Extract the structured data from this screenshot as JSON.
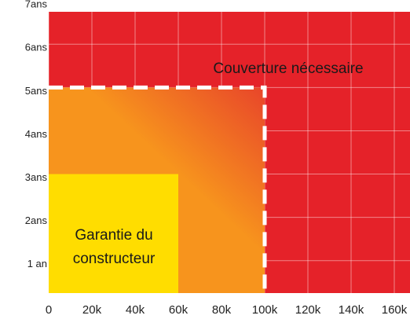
{
  "chart_data": {
    "type": "region",
    "xlim": [
      0,
      160000
    ],
    "ylim": [
      0.25,
      6.75
    ],
    "xticks": [
      {
        "value": 0,
        "label": "0"
      },
      {
        "value": 20000,
        "label": "20k"
      },
      {
        "value": 40000,
        "label": "40k"
      },
      {
        "value": 60000,
        "label": "60k"
      },
      {
        "value": 80000,
        "label": "80k"
      },
      {
        "value": 100000,
        "label": "100k"
      },
      {
        "value": 120000,
        "label": "120k"
      },
      {
        "value": 140000,
        "label": "140k"
      },
      {
        "value": 160000,
        "label": "160k"
      }
    ],
    "yticks": [
      {
        "value": 1,
        "label": "1 an"
      },
      {
        "value": 2,
        "label": "2ans"
      },
      {
        "value": 3,
        "label": "3ans"
      },
      {
        "value": 4,
        "label": "4ans"
      },
      {
        "value": 5,
        "label": "5ans"
      },
      {
        "value": 6,
        "label": "6ans"
      },
      {
        "value": 7,
        "label": "7ans"
      }
    ],
    "grid": true,
    "regions": [
      {
        "label": [
          "Couverture nécessaire"
        ],
        "color": "#e52229"
      },
      {
        "x": [
          0,
          100000
        ],
        "y": [
          0,
          5
        ],
        "colors": [
          "#f7941d",
          "#e8452a"
        ],
        "dashed": true
      },
      {
        "label": [
          "Garantie du",
          "constructeur"
        ],
        "x": [
          0,
          60000
        ],
        "y": [
          0,
          3
        ],
        "color": "#ffdd00"
      }
    ]
  }
}
